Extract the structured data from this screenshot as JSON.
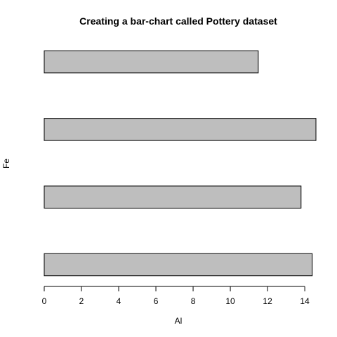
{
  "chart_data": {
    "type": "bar",
    "orientation": "horizontal",
    "title": "Creating a bar-chart called Pottery dataset",
    "xlabel": "Al",
    "ylabel": "Fe",
    "values": [
      14.4,
      13.8,
      14.6,
      11.5
    ],
    "xlim": [
      0,
      14.6
    ],
    "xticks": [
      0,
      2,
      4,
      6,
      8,
      10,
      12,
      14
    ],
    "bar_color": "#bebebe",
    "grid": false,
    "legend": false
  }
}
